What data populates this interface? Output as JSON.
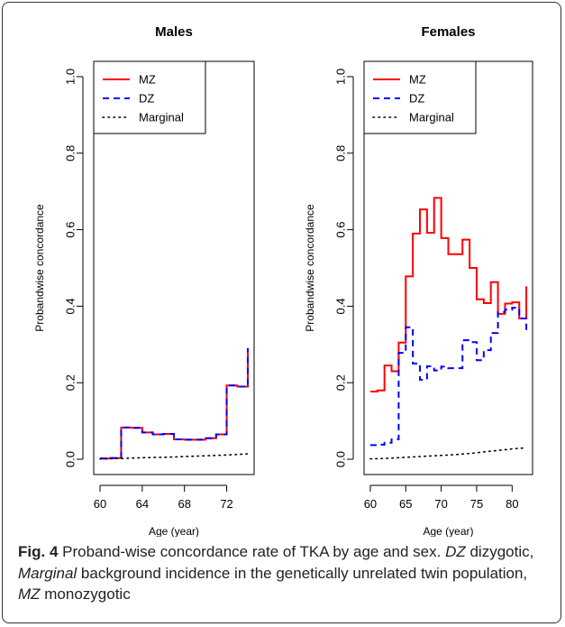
{
  "caption": {
    "label": "Fig. 4",
    "text": " Proband-wise concordance rate of TKA by age and sex. ",
    "dz_abbr": "DZ",
    "dz_text": " dizygotic, ",
    "marginal_abbr": "Marginal",
    "marginal_text": " background incidence in the genetically unrelated twin population, ",
    "mz_abbr": "MZ",
    "mz_text": " monozygotic"
  },
  "colors": {
    "mz": "#ff0000",
    "dz": "#0000ff",
    "marginal": "#000000"
  },
  "chart_data": [
    {
      "type": "line",
      "title": "Males",
      "xlabel": "Age (year)",
      "ylabel": "Probandwise concordance",
      "xlim": [
        59.4,
        74.6
      ],
      "ylim": [
        -0.04,
        1.04
      ],
      "xticks": [
        60,
        64,
        68,
        72
      ],
      "yticks": [
        0.0,
        0.2,
        0.4,
        0.6,
        0.8,
        1.0
      ],
      "ytick_labels": [
        "0.0",
        "0.2",
        "0.4",
        "0.6",
        "0.8",
        "1.0"
      ],
      "grid": false,
      "legend_position": "top-left",
      "series": [
        {
          "name": "MZ",
          "color_key": "mz",
          "style": "step",
          "x": [
            60,
            61,
            62,
            63,
            64,
            65,
            66,
            67,
            68,
            69,
            70,
            71,
            72,
            73,
            74,
            74
          ],
          "y": [
            0.002,
            0.003,
            0.083,
            0.082,
            0.07,
            0.065,
            0.066,
            0.052,
            0.051,
            0.051,
            0.055,
            0.065,
            0.193,
            0.19,
            0.19,
            0.29
          ]
        },
        {
          "name": "DZ",
          "color_key": "dz",
          "style": "step",
          "x": [
            60,
            61,
            62,
            63,
            64,
            65,
            66,
            67,
            68,
            69,
            70,
            71,
            72,
            73,
            74,
            74
          ],
          "y": [
            0.002,
            0.003,
            0.083,
            0.082,
            0.07,
            0.065,
            0.066,
            0.052,
            0.051,
            0.051,
            0.055,
            0.065,
            0.193,
            0.19,
            0.19,
            0.29
          ]
        },
        {
          "name": "Marginal",
          "color_key": "marginal",
          "style": "dotted",
          "x": [
            60,
            62,
            64,
            66,
            68,
            70,
            72,
            74
          ],
          "y": [
            0.001,
            0.002,
            0.004,
            0.005,
            0.007,
            0.009,
            0.011,
            0.014
          ]
        }
      ]
    },
    {
      "type": "line",
      "title": "Females",
      "xlabel": "Age (year)",
      "ylabel": "Probandwise concordance",
      "xlim": [
        59.12,
        82.88
      ],
      "ylim": [
        -0.04,
        1.04
      ],
      "xticks": [
        60,
        65,
        70,
        75,
        80
      ],
      "yticks": [
        0.0,
        0.2,
        0.4,
        0.6,
        0.8,
        1.0
      ],
      "ytick_labels": [
        "0.0",
        "0.2",
        "0.4",
        "0.6",
        "0.8",
        "1.0"
      ],
      "grid": false,
      "legend_position": "top-left",
      "series": [
        {
          "name": "MZ",
          "color_key": "mz",
          "style": "step",
          "x": [
            60,
            61,
            62,
            63,
            64,
            65,
            66,
            67,
            68,
            69,
            70,
            71,
            72,
            73,
            74,
            75,
            76,
            77,
            78,
            79,
            80,
            81,
            82,
            82
          ],
          "y": [
            0.177,
            0.18,
            0.245,
            0.23,
            0.305,
            0.478,
            0.59,
            0.653,
            0.592,
            0.683,
            0.578,
            0.536,
            0.536,
            0.574,
            0.5,
            0.418,
            0.408,
            0.463,
            0.38,
            0.407,
            0.41,
            0.368,
            0.368,
            0.452
          ]
        },
        {
          "name": "DZ",
          "color_key": "dz",
          "style": "step",
          "x": [
            60,
            61,
            62,
            63,
            64,
            65,
            66,
            67,
            68,
            69,
            70,
            71,
            72,
            73,
            74,
            75,
            76,
            77,
            78,
            79,
            80,
            81,
            82,
            82
          ],
          "y": [
            0.037,
            0.038,
            0.043,
            0.052,
            0.278,
            0.345,
            0.25,
            0.208,
            0.243,
            0.232,
            0.242,
            0.238,
            0.238,
            0.311,
            0.306,
            0.259,
            0.285,
            0.33,
            0.385,
            0.391,
            0.396,
            0.368,
            0.368,
            0.333
          ]
        },
        {
          "name": "Marginal",
          "color_key": "marginal",
          "style": "dotted",
          "x": [
            60,
            62,
            64,
            66,
            68,
            70,
            72,
            74,
            76,
            78,
            80,
            82
          ],
          "y": [
            0.001,
            0.002,
            0.004,
            0.006,
            0.008,
            0.01,
            0.012,
            0.015,
            0.019,
            0.023,
            0.027,
            0.03
          ]
        }
      ]
    }
  ]
}
